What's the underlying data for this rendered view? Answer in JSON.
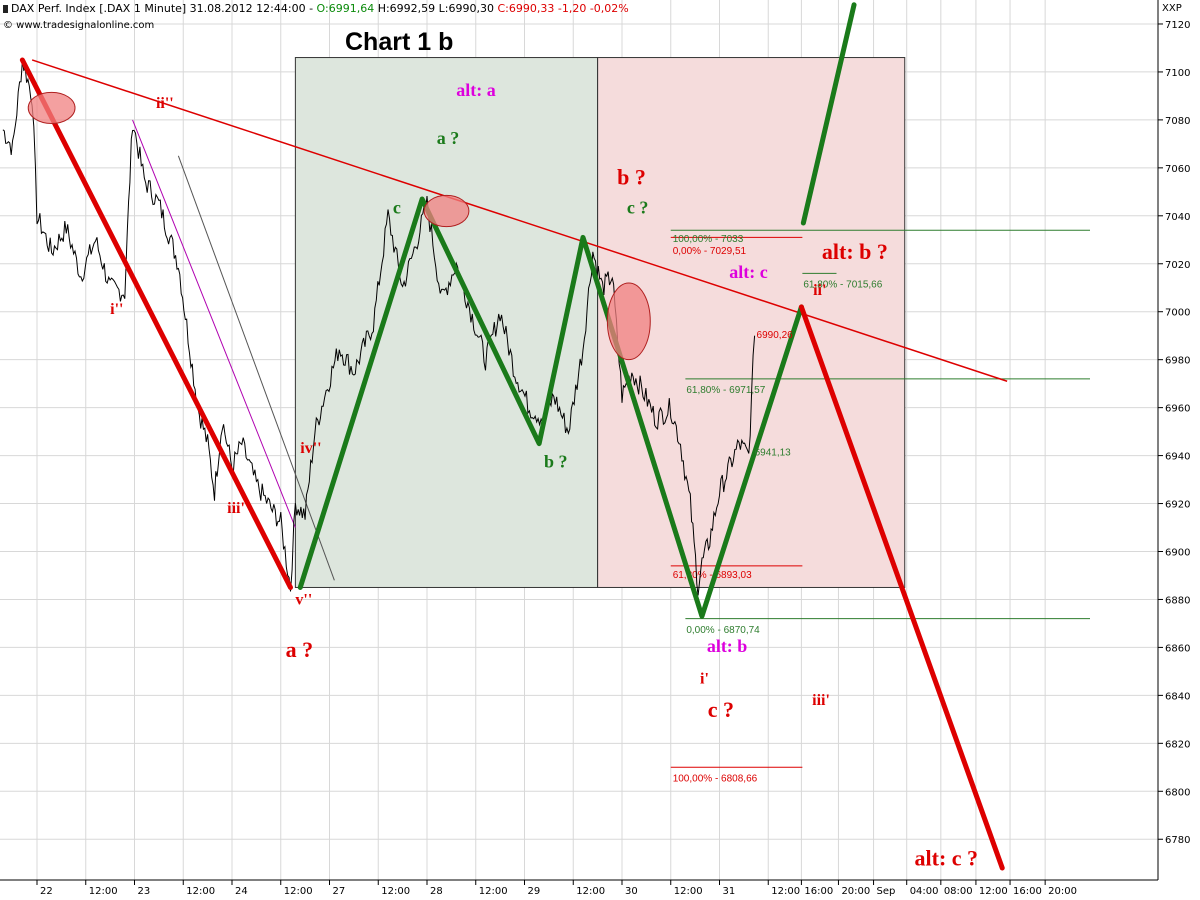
{
  "header": {
    "instrument": "DAX Perf. Index [.DAX  1 Minute] 31.08.2012 12:44:00 - ",
    "open": "O:6991,64",
    "high": "H:6992,59",
    "low": "L:6990,30",
    "close": "C:6990,33 -1,20 -0,02%",
    "source": "© www.tradesignalonline.com",
    "symbol": "XXP"
  },
  "chart_data": {
    "type": "line",
    "title": "Chart 1 b",
    "ylim": [
      6763,
      7130
    ],
    "y_ticks": [
      7120,
      7100,
      7080,
      7060,
      7040,
      7020,
      7000,
      6980,
      6960,
      6940,
      6920,
      6900,
      6880,
      6860,
      6840,
      6820,
      6800,
      6780
    ],
    "x_ticks": [
      {
        "t": 0.0,
        "label": "22"
      },
      {
        "t": 0.5,
        "label": "12:00"
      },
      {
        "t": 1.0,
        "label": "23"
      },
      {
        "t": 1.5,
        "label": "12:00"
      },
      {
        "t": 2.0,
        "label": "24"
      },
      {
        "t": 2.5,
        "label": "12:00"
      },
      {
        "t": 3.0,
        "label": "27"
      },
      {
        "t": 3.5,
        "label": "12:00"
      },
      {
        "t": 4.0,
        "label": "28"
      },
      {
        "t": 4.5,
        "label": "12:00"
      },
      {
        "t": 5.0,
        "label": "29"
      },
      {
        "t": 5.5,
        "label": "12:00"
      },
      {
        "t": 6.0,
        "label": "30"
      },
      {
        "t": 6.5,
        "label": "12:00"
      },
      {
        "t": 7.0,
        "label": "31"
      },
      {
        "t": 7.5,
        "label": "12:00"
      },
      {
        "t": 7.84,
        "label": "16:00"
      },
      {
        "t": 8.22,
        "label": "20:00"
      },
      {
        "t": 8.58,
        "label": "Sep"
      },
      {
        "t": 8.92,
        "label": "04:00"
      },
      {
        "t": 9.27,
        "label": "08:00"
      },
      {
        "t": 9.63,
        "label": "12:00"
      },
      {
        "t": 9.98,
        "label": "16:00"
      },
      {
        "t": 10.34,
        "label": "20:00"
      }
    ],
    "price_path": [
      [
        -0.35,
        7076
      ],
      [
        -0.25,
        7068
      ],
      [
        -0.15,
        7105
      ],
      [
        -0.05,
        7090
      ],
      [
        0.0,
        7040
      ],
      [
        0.15,
        7025
      ],
      [
        0.3,
        7035
      ],
      [
        0.45,
        7015
      ],
      [
        0.6,
        7030
      ],
      [
        0.75,
        7010
      ],
      [
        0.9,
        7008
      ],
      [
        0.98,
        7080
      ],
      [
        1.1,
        7055
      ],
      [
        1.25,
        7045
      ],
      [
        1.45,
        7020
      ],
      [
        1.55,
        6990
      ],
      [
        1.65,
        6960
      ],
      [
        1.75,
        6945
      ],
      [
        1.82,
        6925
      ],
      [
        1.9,
        6955
      ],
      [
        2.0,
        6935
      ],
      [
        2.1,
        6945
      ],
      [
        2.25,
        6928
      ],
      [
        2.4,
        6918
      ],
      [
        2.5,
        6912
      ],
      [
        2.6,
        6885
      ],
      [
        2.65,
        6920
      ],
      [
        2.75,
        6915
      ],
      [
        2.85,
        6950
      ],
      [
        2.95,
        6965
      ],
      [
        3.1,
        6985
      ],
      [
        3.25,
        6975
      ],
      [
        3.45,
        6995
      ],
      [
        3.6,
        7040
      ],
      [
        3.75,
        7010
      ],
      [
        3.9,
        7030
      ],
      [
        4.0,
        7045
      ],
      [
        4.15,
        7005
      ],
      [
        4.3,
        7020
      ],
      [
        4.45,
        7000
      ],
      [
        4.6,
        6980
      ],
      [
        4.75,
        7000
      ],
      [
        4.9,
        6975
      ],
      [
        5.05,
        6960
      ],
      [
        5.2,
        6955
      ],
      [
        5.3,
        6965
      ],
      [
        5.45,
        6950
      ],
      [
        5.6,
        6985
      ],
      [
        5.7,
        7025
      ],
      [
        5.8,
        7010
      ],
      [
        5.9,
        7015
      ],
      [
        6.0,
        6965
      ],
      [
        6.1,
        6975
      ],
      [
        6.2,
        6968
      ],
      [
        6.35,
        6955
      ],
      [
        6.5,
        6960
      ],
      [
        6.6,
        6945
      ],
      [
        6.7,
        6920
      ],
      [
        6.78,
        6885
      ],
      [
        6.82,
        6895
      ],
      [
        6.9,
        6905
      ],
      [
        7.0,
        6925
      ],
      [
        7.1,
        6935
      ],
      [
        7.2,
        6945
      ],
      [
        7.3,
        6940
      ],
      [
        7.36,
        6990
      ]
    ],
    "wave_lines": [
      {
        "color": "#dd0000",
        "width": 5,
        "points": [
          [
            -0.15,
            7105
          ],
          [
            2.6,
            6885
          ]
        ]
      },
      {
        "color": "#1a7a1a",
        "width": 5,
        "points": [
          [
            2.7,
            6885
          ],
          [
            3.95,
            7047
          ],
          [
            5.15,
            6945
          ],
          [
            5.6,
            7031
          ],
          [
            6.82,
            6873
          ],
          [
            7.84,
            7002
          ]
        ]
      },
      {
        "color": "#dd0000",
        "width": 5,
        "points": [
          [
            7.84,
            7002
          ],
          [
            9.9,
            6768
          ]
        ]
      },
      {
        "color": "#1a7a1a",
        "width": 5,
        "points": [
          [
            7.86,
            7037
          ],
          [
            8.38,
            7128
          ]
        ]
      }
    ],
    "trend_line": {
      "color": "#dd0000",
      "points": [
        [
          -0.05,
          7105
        ],
        [
          9.95,
          6971
        ]
      ]
    },
    "thin_lines": [
      {
        "color": "#b000b0",
        "points": [
          [
            0.98,
            7080
          ],
          [
            2.65,
            6910
          ]
        ]
      },
      {
        "color": "#555555",
        "points": [
          [
            1.45,
            7065
          ],
          [
            3.05,
            6888
          ]
        ]
      }
    ],
    "shaded_boxes": [
      {
        "t0": 2.65,
        "t1": 5.75,
        "y0": 6885,
        "y1": 7106,
        "fill": "#dde6dd"
      },
      {
        "t0": 5.75,
        "t1": 8.9,
        "y0": 6885,
        "y1": 7106,
        "fill": "#f5dcdc"
      }
    ],
    "ellipses": [
      {
        "t": 0.15,
        "y": 7085,
        "rt": 0.24,
        "ry": 6.5
      },
      {
        "t": 4.2,
        "y": 7042,
        "rt": 0.23,
        "ry": 6.5
      },
      {
        "t": 6.07,
        "y": 6996,
        "rt": 0.22,
        "ry": 16
      }
    ],
    "fib_lines": [
      {
        "t0": 6.5,
        "t1": 7.85,
        "y": 7031,
        "color": "#dd0000",
        "label": "0,00% - 7029,51",
        "lt": 6.52,
        "ly": 7024
      },
      {
        "t0": 6.5,
        "t1": 10.8,
        "y": 7034,
        "color": "#2e7d2e",
        "label": "100,00% - 7033",
        "lt": 6.52,
        "ly": 7029
      },
      {
        "t0": 6.65,
        "t1": 10.8,
        "y": 6972,
        "color": "#2e7d2e",
        "label": "61,80% - 6971,57",
        "lt": 6.66,
        "ly": 6966
      },
      {
        "t0": 7.85,
        "t1": 8.2,
        "y": 7016,
        "color": "#2e7d2e",
        "label": "61,80% - 7015,66",
        "lt": 7.86,
        "ly": 7010
      },
      {
        "t0": 6.5,
        "t1": 7.85,
        "y": 6894,
        "color": "#dd0000",
        "label": "61,80% - 6893,03",
        "lt": 6.52,
        "ly": 6889
      },
      {
        "t0": 6.65,
        "t1": 10.8,
        "y": 6872,
        "color": "#2e7d2e",
        "label": "0,00% - 6870,74",
        "lt": 6.66,
        "ly": 6866
      },
      {
        "t0": 6.5,
        "t1": 7.85,
        "y": 6810,
        "color": "#dd0000",
        "label": "100,00% - 6808,66",
        "lt": 6.52,
        "ly": 6804
      }
    ],
    "value_labels": [
      {
        "t": 7.38,
        "y": 6989,
        "text": "6990,26",
        "color": "#dd0000"
      },
      {
        "t": 7.36,
        "y": 6940,
        "text": "6941,13",
        "color": "#2e7d2e"
      }
    ],
    "wave_labels": [
      {
        "t": 0.75,
        "y": 6999,
        "text": "i''",
        "color": "#dd0000",
        "size": 16
      },
      {
        "t": 1.22,
        "y": 7085,
        "text": "ii''",
        "color": "#dd0000",
        "size": 16
      },
      {
        "t": 1.95,
        "y": 6916,
        "text": "iii''",
        "color": "#dd0000",
        "size": 16
      },
      {
        "t": 2.7,
        "y": 6941,
        "text": "iv''",
        "color": "#dd0000",
        "size": 16
      },
      {
        "t": 2.65,
        "y": 6878,
        "text": "v''",
        "color": "#dd0000",
        "size": 16
      },
      {
        "t": 2.55,
        "y": 6856,
        "text": "a ?",
        "color": "#dd0000",
        "size": 22
      },
      {
        "t": 4.3,
        "y": 7090,
        "text": "alt: a",
        "color": "#dd00dd",
        "size": 18
      },
      {
        "t": 4.1,
        "y": 7070,
        "text": "a ?",
        "color": "#1a7a1a",
        "size": 18
      },
      {
        "t": 3.65,
        "y": 7041,
        "text": "c",
        "color": "#1a7a1a",
        "size": 18
      },
      {
        "t": 5.2,
        "y": 6935,
        "text": "b ?",
        "color": "#1a7a1a",
        "size": 18
      },
      {
        "t": 5.95,
        "y": 7053,
        "text": "b ?",
        "color": "#dd0000",
        "size": 22
      },
      {
        "t": 6.05,
        "y": 7041,
        "text": "c ?",
        "color": "#1a7a1a",
        "size": 18
      },
      {
        "t": 7.1,
        "y": 7014,
        "text": "alt: c",
        "color": "#dd00dd",
        "size": 18
      },
      {
        "t": 8.05,
        "y": 7022,
        "text": "alt: b ?",
        "color": "#dd0000",
        "size": 22
      },
      {
        "t": 7.96,
        "y": 7007,
        "text": "ii'",
        "color": "#dd0000",
        "size": 16
      },
      {
        "t": 6.87,
        "y": 6858,
        "text": "alt: b",
        "color": "#dd00dd",
        "size": 18
      },
      {
        "t": 6.8,
        "y": 6845,
        "text": "i'",
        "color": "#dd0000",
        "size": 16
      },
      {
        "t": 6.88,
        "y": 6831,
        "text": "c ?",
        "color": "#dd0000",
        "size": 22
      },
      {
        "t": 7.95,
        "y": 6836,
        "text": "iii'",
        "color": "#dd0000",
        "size": 16
      },
      {
        "t": 9.0,
        "y": 6769,
        "text": "alt: c ?",
        "color": "#dd0000",
        "size": 22
      }
    ]
  }
}
